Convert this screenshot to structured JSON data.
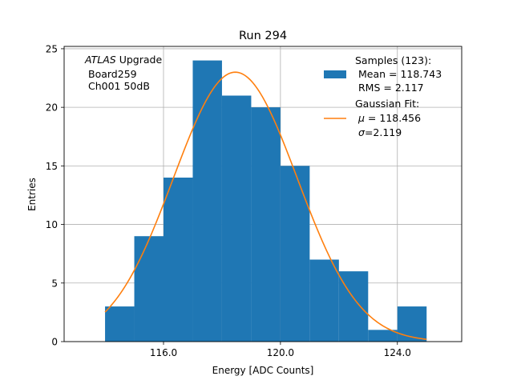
{
  "chart_data": {
    "type": "bar",
    "title": "Run 294",
    "xlabel": "Energy [ADC Counts]",
    "ylabel": "Entries",
    "xlim": [
      112.6,
      126.2
    ],
    "ylim": [
      0,
      25.2
    ],
    "xticks": [
      116,
      120,
      124
    ],
    "xtick_labels": [
      "116.0",
      "120.0",
      "124.0"
    ],
    "yticks": [
      0,
      5,
      10,
      15,
      20,
      25
    ],
    "ytick_labels": [
      "0",
      "5",
      "10",
      "15",
      "20",
      "25"
    ],
    "grid": true,
    "annotation": {
      "line1_italic": "ATLAS",
      "line1_rest": " Upgrade",
      "line2": "Board259",
      "line3": "Ch001 50dB"
    },
    "histogram": {
      "name": "Samples (123):",
      "color": "#1f77b4",
      "bin_edges": [
        114,
        115,
        116,
        117,
        118,
        119,
        120,
        121,
        122,
        123,
        124,
        125
      ],
      "counts": [
        3,
        9,
        14,
        24,
        21,
        20,
        15,
        7,
        6,
        1,
        3
      ]
    },
    "fit": {
      "name": "Gaussian Fit:",
      "color": "#ff7f0e",
      "mu": 118.456,
      "sigma": 2.119,
      "amplitude": 23.0,
      "x_range": [
        114,
        125
      ]
    },
    "legend": {
      "placement": "top-right",
      "hist_title": "Samples (123):",
      "hist_mean": "Mean = 118.743",
      "hist_rms": "RMS = 2.117",
      "fit_title": "Gaussian Fit:",
      "fit_mu_symbol": "μ",
      "fit_mu_value": " = 118.456",
      "fit_sigma_symbol": "σ",
      "fit_sigma_value": "=2.119"
    }
  }
}
